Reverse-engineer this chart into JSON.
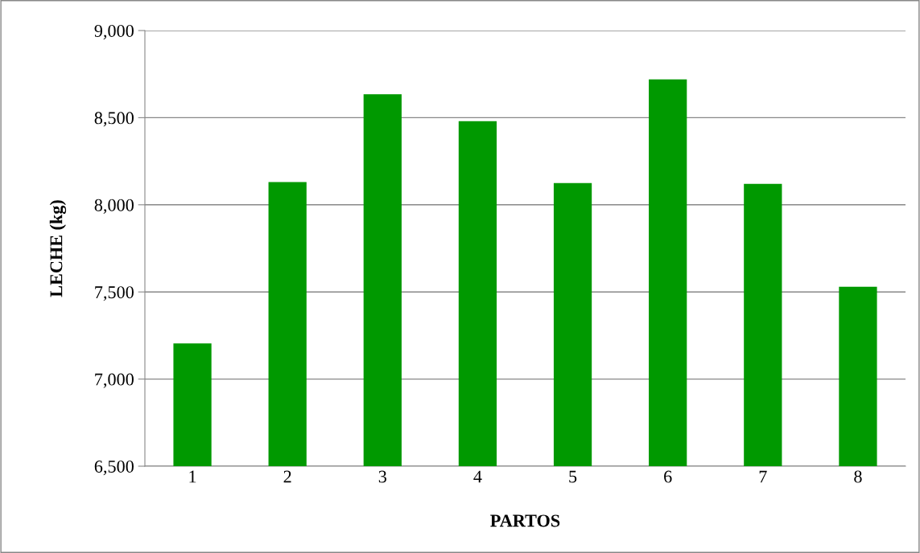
{
  "chart_data": {
    "type": "bar",
    "xlabel": "PARTOS",
    "ylabel": "LECHE (kg)",
    "categories": [
      "1",
      "2",
      "3",
      "4",
      "5",
      "6",
      "7",
      "8"
    ],
    "values": [
      7205,
      8130,
      8635,
      8480,
      8125,
      8720,
      8120,
      7530
    ],
    "color": "#009900",
    "ylim": [
      6500,
      9000
    ],
    "yticks": [
      {
        "value": 6500,
        "label": "6,500"
      },
      {
        "value": 7000,
        "label": "7,000"
      },
      {
        "value": 7500,
        "label": "7,500"
      },
      {
        "value": 8000,
        "label": "8,000"
      },
      {
        "value": 8500,
        "label": "8,500"
      },
      {
        "value": 9000,
        "label": "9,000"
      }
    ],
    "grid": "y",
    "legend": false
  }
}
